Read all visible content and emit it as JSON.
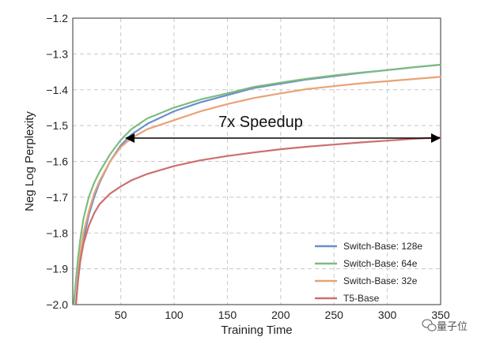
{
  "chart_data": {
    "type": "line",
    "xlabel": "Training Time",
    "ylabel": "Neg Log Perplexity",
    "xlim": [
      5,
      350
    ],
    "ylim": [
      -2.0,
      -1.2
    ],
    "x_ticks": [
      50,
      100,
      150,
      200,
      250,
      300,
      350
    ],
    "x_tick_labels": [
      "50",
      "100",
      "150",
      "200",
      "250",
      "300",
      "350"
    ],
    "y_ticks": [
      -2.0,
      -1.9,
      -1.8,
      -1.7,
      -1.6,
      -1.5,
      -1.4,
      -1.3,
      -1.2
    ],
    "y_tick_labels": [
      "−2.0",
      "−1.9",
      "−1.8",
      "−1.7",
      "−1.6",
      "−1.5",
      "−1.4",
      "−1.3",
      "−1.2"
    ],
    "grid": true,
    "legend_position": "bottom-right",
    "series": [
      {
        "name": "Switch-Base: 128e",
        "color": "#6a8ec9",
        "x": [
          8,
          10,
          12,
          15,
          20,
          25,
          30,
          40,
          50,
          60,
          75,
          100,
          125,
          150,
          175,
          200,
          225,
          250,
          275,
          300,
          325,
          350
        ],
        "y": [
          -2.0,
          -1.93,
          -1.88,
          -1.82,
          -1.75,
          -1.7,
          -1.66,
          -1.6,
          -1.555,
          -1.525,
          -1.495,
          -1.46,
          -1.435,
          -1.415,
          -1.395,
          -1.383,
          -1.371,
          -1.362,
          -1.353,
          -1.345,
          -1.337,
          -1.33
        ]
      },
      {
        "name": "Switch-Base: 64e",
        "color": "#7dbb7f",
        "x": [
          6,
          8,
          10,
          12,
          15,
          20,
          25,
          30,
          40,
          50,
          60,
          75,
          100,
          125,
          150,
          175,
          200,
          225,
          250,
          275,
          300,
          325,
          350
        ],
        "y": [
          -2.0,
          -1.93,
          -1.87,
          -1.82,
          -1.76,
          -1.7,
          -1.66,
          -1.63,
          -1.58,
          -1.54,
          -1.51,
          -1.48,
          -1.45,
          -1.427,
          -1.41,
          -1.392,
          -1.38,
          -1.369,
          -1.36,
          -1.352,
          -1.345,
          -1.337,
          -1.33
        ]
      },
      {
        "name": "Switch-Base: 32e",
        "color": "#e9a275",
        "x": [
          8,
          10,
          12,
          15,
          20,
          25,
          30,
          40,
          50,
          60,
          75,
          100,
          125,
          150,
          175,
          200,
          225,
          250,
          275,
          300,
          325,
          350
        ],
        "y": [
          -2.0,
          -1.92,
          -1.86,
          -1.8,
          -1.74,
          -1.69,
          -1.655,
          -1.6,
          -1.56,
          -1.535,
          -1.51,
          -1.485,
          -1.46,
          -1.44,
          -1.423,
          -1.41,
          -1.398,
          -1.39,
          -1.382,
          -1.376,
          -1.37,
          -1.364
        ]
      },
      {
        "name": "T5-Base",
        "color": "#cc6f6f",
        "x": [
          8,
          10,
          12,
          15,
          20,
          25,
          30,
          40,
          50,
          60,
          75,
          100,
          125,
          150,
          175,
          200,
          225,
          250,
          275,
          300,
          325,
          350
        ],
        "y": [
          -2.0,
          -1.93,
          -1.88,
          -1.83,
          -1.78,
          -1.745,
          -1.72,
          -1.69,
          -1.67,
          -1.653,
          -1.635,
          -1.613,
          -1.597,
          -1.585,
          -1.575,
          -1.566,
          -1.559,
          -1.553,
          -1.547,
          -1.542,
          -1.537,
          -1.533
        ]
      }
    ],
    "annotation": {
      "text": "7x Speedup",
      "arrow_from": [
        54,
        -1.535
      ],
      "arrow_to": [
        350,
        -1.535
      ]
    }
  },
  "watermark": {
    "text": "量子位",
    "icon": "wechat-icon"
  }
}
